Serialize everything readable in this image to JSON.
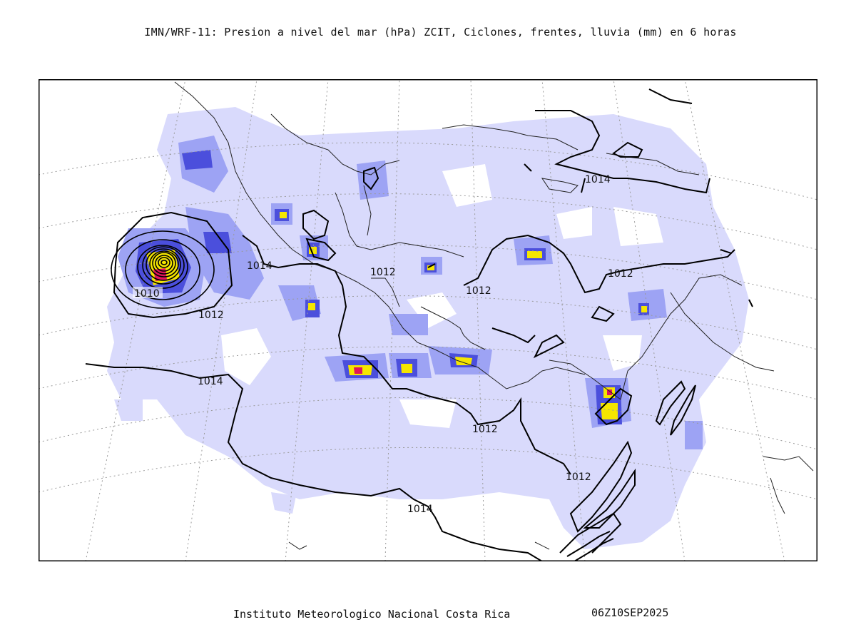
{
  "title": "IMN/WRF-11: Presion a nivel del mar (hPa) ZCIT, Ciclones, frentes, lluvia (mm) en 6 horas",
  "footer": {
    "institution": "Instituto Meteorologico Nacional Costa Rica",
    "datetime": "06Z10SEP2025"
  },
  "isobar_labels": [
    "1010",
    "1012",
    "1012",
    "1012",
    "1012",
    "1012",
    "1012",
    "1014",
    "1014",
    "1014",
    "1014"
  ],
  "colors": {
    "rain_light": "#d9dafc",
    "rain_medium": "#9da3f4",
    "rain_heavy": "#4b4fdc",
    "rain_extreme_yellow": "#f5e600",
    "rain_extreme_red": "#e0155a",
    "isobar": "#000000",
    "coastline": "#222222"
  }
}
